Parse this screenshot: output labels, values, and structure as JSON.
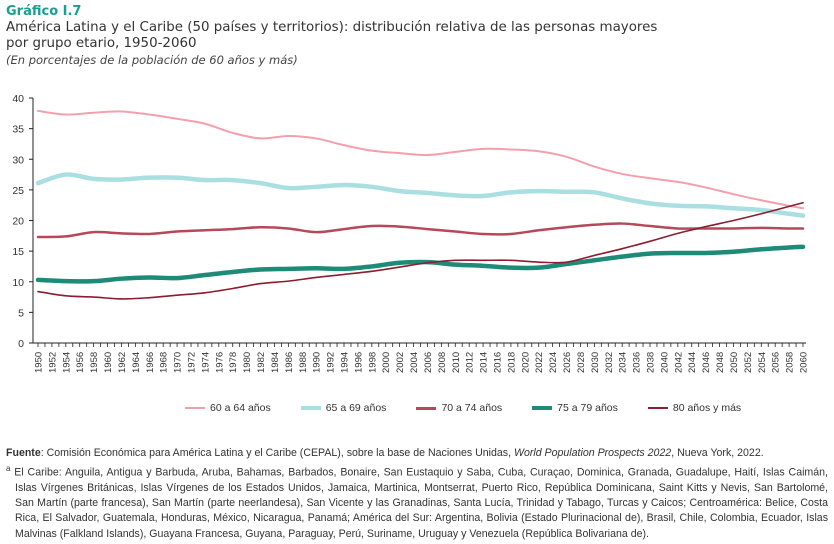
{
  "header": {
    "figure_number": "Gráfico I.7",
    "title_line1": "América Latina y el Caribe (50 países y territorios): distribución relativa de las personas mayores",
    "title_line2": "por grupo etario, 1950-2060",
    "subtitle": "(En porcentajes de la población de 60 años y más)"
  },
  "chart_data": {
    "type": "line",
    "title": "América Latina y el Caribe (50 países y territorios): distribución relativa de las personas mayores por grupo etario, 1950-2060",
    "xlabel": "",
    "ylabel": "",
    "ylim": [
      0,
      40
    ],
    "yticks": [
      "0",
      "5",
      "10",
      "15",
      "20",
      "25",
      "30",
      "35",
      "40"
    ],
    "xlim": [
      1950,
      2060
    ],
    "grid": false,
    "legend_position": "bottom",
    "x": [
      1950,
      1954,
      1958,
      1962,
      1966,
      1970,
      1974,
      1978,
      1982,
      1986,
      1990,
      1994,
      1998,
      2002,
      2006,
      2010,
      2014,
      2018,
      2022,
      2026,
      2030,
      2034,
      2038,
      2042,
      2046,
      2050,
      2054,
      2058,
      2060
    ],
    "series": [
      {
        "name": "60 a 64 años",
        "color": "#f4a0ac",
        "width": 2,
        "values": [
          37.9,
          37.3,
          37.6,
          37.8,
          37.3,
          36.6,
          35.8,
          34.3,
          33.4,
          33.8,
          33.4,
          32.3,
          31.4,
          31.0,
          30.7,
          31.2,
          31.7,
          31.6,
          31.3,
          30.4,
          28.8,
          27.6,
          26.9,
          26.3,
          25.4,
          24.3,
          23.3,
          22.4,
          22.0
        ]
      },
      {
        "name": "65 a 69 años",
        "color": "#a9dfe0",
        "width": 4.5,
        "values": [
          26.1,
          27.5,
          26.8,
          26.7,
          27.0,
          27.0,
          26.6,
          26.6,
          26.1,
          25.3,
          25.5,
          25.8,
          25.5,
          24.8,
          24.5,
          24.1,
          24.0,
          24.6,
          24.8,
          24.7,
          24.6,
          23.6,
          22.8,
          22.4,
          22.3,
          22.0,
          21.7,
          21.1,
          20.8
        ]
      },
      {
        "name": "70 a 74 años",
        "color": "#b5485a",
        "width": 2.5,
        "values": [
          17.3,
          17.4,
          18.1,
          17.9,
          17.8,
          18.2,
          18.4,
          18.6,
          18.9,
          18.7,
          18.1,
          18.6,
          19.1,
          19.0,
          18.6,
          18.2,
          17.8,
          17.8,
          18.4,
          18.9,
          19.3,
          19.5,
          19.1,
          18.7,
          18.7,
          18.7,
          18.8,
          18.7,
          18.7
        ]
      },
      {
        "name": "75 a 79 años",
        "color": "#1e8a78",
        "width": 4.5,
        "values": [
          10.3,
          10.1,
          10.1,
          10.5,
          10.7,
          10.6,
          11.1,
          11.6,
          12.0,
          12.1,
          12.2,
          12.1,
          12.5,
          13.1,
          13.2,
          12.8,
          12.6,
          12.3,
          12.3,
          12.9,
          13.5,
          14.1,
          14.6,
          14.7,
          14.7,
          14.9,
          15.3,
          15.6,
          15.7
        ]
      },
      {
        "name": "80 años y más",
        "color": "#8c1c2e",
        "width": 1.6,
        "values": [
          8.4,
          7.7,
          7.5,
          7.2,
          7.4,
          7.8,
          8.2,
          8.9,
          9.7,
          10.1,
          10.7,
          11.2,
          11.7,
          12.4,
          13.1,
          13.5,
          13.5,
          13.5,
          13.2,
          13.2,
          14.3,
          15.4,
          16.6,
          17.9,
          19.0,
          20.0,
          21.1,
          22.3,
          22.9
        ]
      }
    ]
  },
  "legend": [
    {
      "label": "60 a 64 años",
      "color": "#f4a0ac",
      "thickness": 2
    },
    {
      "label": "65 a 69 años",
      "color": "#a9dfe0",
      "thickness": 4
    },
    {
      "label": "70 a 74 años",
      "color": "#b5485a",
      "thickness": 3
    },
    {
      "label": "75 a 79 años",
      "color": "#1e8a78",
      "thickness": 4
    },
    {
      "label": "80 años y más",
      "color": "#8c1c2e",
      "thickness": 2
    }
  ],
  "footer": {
    "source_label": "Fuente",
    "source_text_before": ": Comisión Económica para América Latina y el Caribe (CEPAL), sobre la base de Naciones Unidas, ",
    "source_italic": "World Population Prospects 2022",
    "source_text_after": ", Nueva York, 2022.",
    "note_marker": "a",
    "note_text": " El Caribe: Anguila, Antigua y Barbuda, Aruba, Bahamas, Barbados, Bonaire, San Eustaquio y Saba, Cuba, Curaçao, Dominica, Granada, Guadalupe, Haití, Islas Caimán, Islas Vírgenes Británicas, Islas Vírgenes de los Estados Unidos, Jamaica, Martinica, Montserrat, Puerto Rico, República Dominicana, Saint Kitts y Nevis, San Bartolomé, San Martín (parte francesa), San Martín (parte neerlandesa), San Vicente y las Granadinas, Santa Lucía, Trinidad y Tabago, Turcas y Caicos; Centroamérica: Belice, Costa Rica, El Salvador, Guatemala, Honduras, México, Nicaragua, Panamá; América del Sur: Argentina, Bolivia (Estado Plurinacional de), Brasil, Chile, Colombia, Ecuador, Islas Malvinas (Falkland Islands), Guayana Francesa, Guyana, Paraguay, Perú, Suriname, Uruguay y Venezuela (República Bolivariana de)."
  }
}
